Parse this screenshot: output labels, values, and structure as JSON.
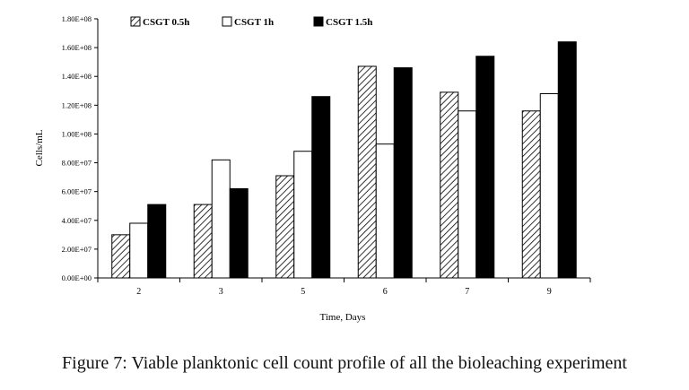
{
  "chart_data": {
    "type": "bar",
    "title": "",
    "xlabel": "Time, Days",
    "ylabel": "Cells/mL",
    "categories": [
      "2",
      "3",
      "5",
      "6",
      "7",
      "9"
    ],
    "ylim": [
      0,
      180000000
    ],
    "yticks": [
      0,
      20000000,
      40000000,
      60000000,
      80000000,
      100000000,
      120000000,
      140000000,
      160000000,
      180000000
    ],
    "ytick_labels": [
      "0.00E+00",
      "2.00E+07",
      "4.00E+07",
      "6.00E+07",
      "8.00E+07",
      "1.00E+08",
      "1.20E+08",
      "1.40E+08",
      "1.60E+08",
      "1.80E+08"
    ],
    "grid": false,
    "legend_position": "top-left",
    "series": [
      {
        "name": "CSGT 0.5h",
        "fill": "hatched",
        "values": [
          30000000,
          51000000,
          71000000,
          147000000,
          129000000,
          116000000
        ]
      },
      {
        "name": "CSGT 1h",
        "fill": "white",
        "values": [
          38000000,
          82000000,
          88000000,
          93000000,
          116000000,
          128000000
        ]
      },
      {
        "name": "CSGT 1.5h",
        "fill": "black",
        "values": [
          51000000,
          62000000,
          126000000,
          146000000,
          154000000,
          164000000
        ]
      }
    ]
  },
  "caption": "Figure 7: Viable planktonic cell count profile of all the bioleaching experiment"
}
